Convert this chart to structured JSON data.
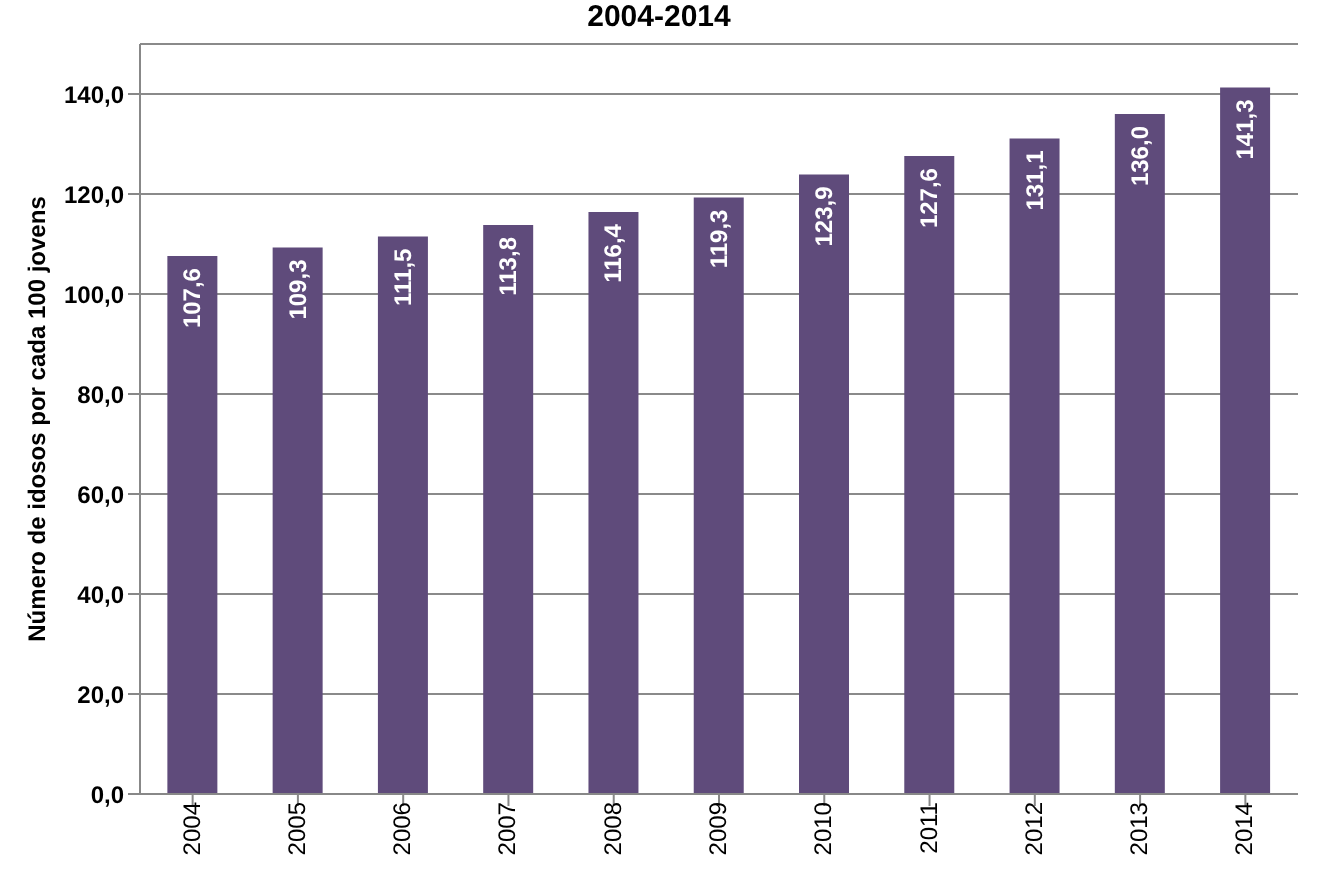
{
  "chart_data": {
    "type": "bar",
    "title": "2004-2014",
    "ylabel": "Número de idosos por cada 100 jovens",
    "categories": [
      "2004",
      "2005",
      "2006",
      "2007",
      "2008",
      "2009",
      "2010",
      "2011",
      "2012",
      "2013",
      "2014"
    ],
    "values": [
      107.6,
      109.3,
      111.5,
      113.8,
      116.4,
      119.3,
      123.9,
      127.6,
      131.1,
      136.0,
      141.3
    ],
    "value_labels": [
      "107,6",
      "109,3",
      "111,5",
      "113,8",
      "116,4",
      "119,3",
      "123,9",
      "127,6",
      "131,1",
      "136,0",
      "141,3"
    ],
    "color": "#5f4b7b",
    "ylim": [
      0,
      150
    ],
    "yticks": [
      {
        "value": 0,
        "label": "0,0"
      },
      {
        "value": 20,
        "label": "20,0"
      },
      {
        "value": 40,
        "label": "40,0"
      },
      {
        "value": 60,
        "label": "60,0"
      },
      {
        "value": 80,
        "label": "80,0"
      },
      {
        "value": 100,
        "label": "100,0"
      },
      {
        "value": 120,
        "label": "120,0"
      },
      {
        "value": 140,
        "label": "140,0"
      }
    ],
    "grid": "y"
  }
}
